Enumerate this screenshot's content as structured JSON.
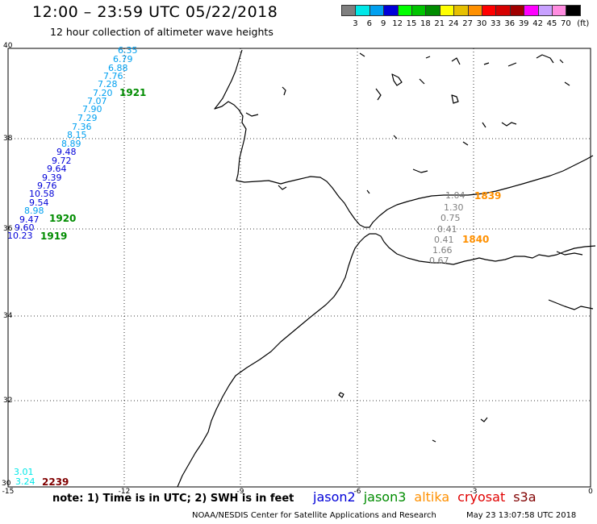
{
  "header": {
    "title": "12:00 – 23:59 UTC 05/22/2018",
    "subtitle": "12 hour collection of altimeter wave heights"
  },
  "colorbar": {
    "unit": "(ft)",
    "labels": [
      "3",
      "6",
      "9",
      "12",
      "15",
      "18",
      "21",
      "24",
      "27",
      "30",
      "33",
      "36",
      "39",
      "42",
      "45",
      "70"
    ],
    "colors": [
      "#7f7f7f",
      "#00e8e8",
      "#00a0f0",
      "#0000d8",
      "#00ff00",
      "#00c400",
      "#008c00",
      "#ffff00",
      "#e6c000",
      "#ff9000",
      "#ff0000",
      "#d60000",
      "#a00000",
      "#ff00ff",
      "#c8a0ff",
      "#ff8ce0",
      "#000000"
    ]
  },
  "axes": {
    "lon_ticks": [
      "-15",
      "-12",
      "-9",
      "-6",
      "-3",
      "0"
    ],
    "lat_ticks": [
      "40",
      "38",
      "36",
      "34",
      "32",
      "30"
    ]
  },
  "observations": [
    {
      "text": "6.35",
      "color": "#00a0f0"
    },
    {
      "text": "6.79",
      "color": "#00a0f0"
    },
    {
      "text": "6.88",
      "color": "#00a0f0"
    },
    {
      "text": "7.76",
      "color": "#00a0f0"
    },
    {
      "text": "7.28",
      "color": "#00a0f0"
    },
    {
      "text": "7.20",
      "color": "#00a0f0"
    },
    {
      "text": "7.07",
      "color": "#00a0f0"
    },
    {
      "text": "7.90",
      "color": "#00a0f0"
    },
    {
      "text": "7.29",
      "color": "#00a0f0"
    },
    {
      "text": "7.36",
      "color": "#00a0f0"
    },
    {
      "text": "8.15",
      "color": "#00a0f0"
    },
    {
      "text": "8.89",
      "color": "#00a0f0"
    },
    {
      "text": "9.48",
      "color": "#0000d8"
    },
    {
      "text": "9.72",
      "color": "#0000d8"
    },
    {
      "text": "9.64",
      "color": "#0000d8"
    },
    {
      "text": "9.39",
      "color": "#0000d8"
    },
    {
      "text": "9.76",
      "color": "#0000d8"
    },
    {
      "text": "10.58",
      "color": "#0000d8"
    },
    {
      "text": "9.54",
      "color": "#0000d8"
    },
    {
      "text": "8.98",
      "color": "#00a0f0"
    },
    {
      "text": "9.47",
      "color": "#0000d8"
    },
    {
      "text": "9.60",
      "color": "#0000d8"
    },
    {
      "text": "10.23",
      "color": "#0000d8"
    },
    {
      "text": "1.04",
      "color": "#7f7f7f"
    },
    {
      "text": "1.30",
      "color": "#7f7f7f"
    },
    {
      "text": "0.75",
      "color": "#7f7f7f"
    },
    {
      "text": "0.41",
      "color": "#7f7f7f"
    },
    {
      "text": "0.41",
      "color": "#7f7f7f"
    },
    {
      "text": "1.66",
      "color": "#7f7f7f"
    },
    {
      "text": "0.67",
      "color": "#7f7f7f"
    },
    {
      "text": "3.01",
      "color": "#00e8e8"
    },
    {
      "text": "3.24",
      "color": "#00e8e8"
    }
  ],
  "pass_times": [
    {
      "text": "1921",
      "color": "#008c00"
    },
    {
      "text": "1920",
      "color": "#008c00"
    },
    {
      "text": "1919",
      "color": "#008c00"
    },
    {
      "text": "1839",
      "color": "#ff9000"
    },
    {
      "text": "1840",
      "color": "#ff9000"
    },
    {
      "text": "2239",
      "color": "#800000"
    }
  ],
  "footer": {
    "note": "note: 1) Time is in UTC; 2) SWH is in feet",
    "satellites": [
      {
        "name": "jason2",
        "color": "#0000d8"
      },
      {
        "name": "jason3",
        "color": "#008c00"
      },
      {
        "name": "altika",
        "color": "#ff9000"
      },
      {
        "name": "cryosat",
        "color": "#e00000"
      },
      {
        "name": "s3a",
        "color": "#800000"
      }
    ],
    "credit": "NOAA/NESDIS Center for Satellite Applications and Research",
    "timestamp": "May 23 13:07:58 UTC 2018"
  }
}
